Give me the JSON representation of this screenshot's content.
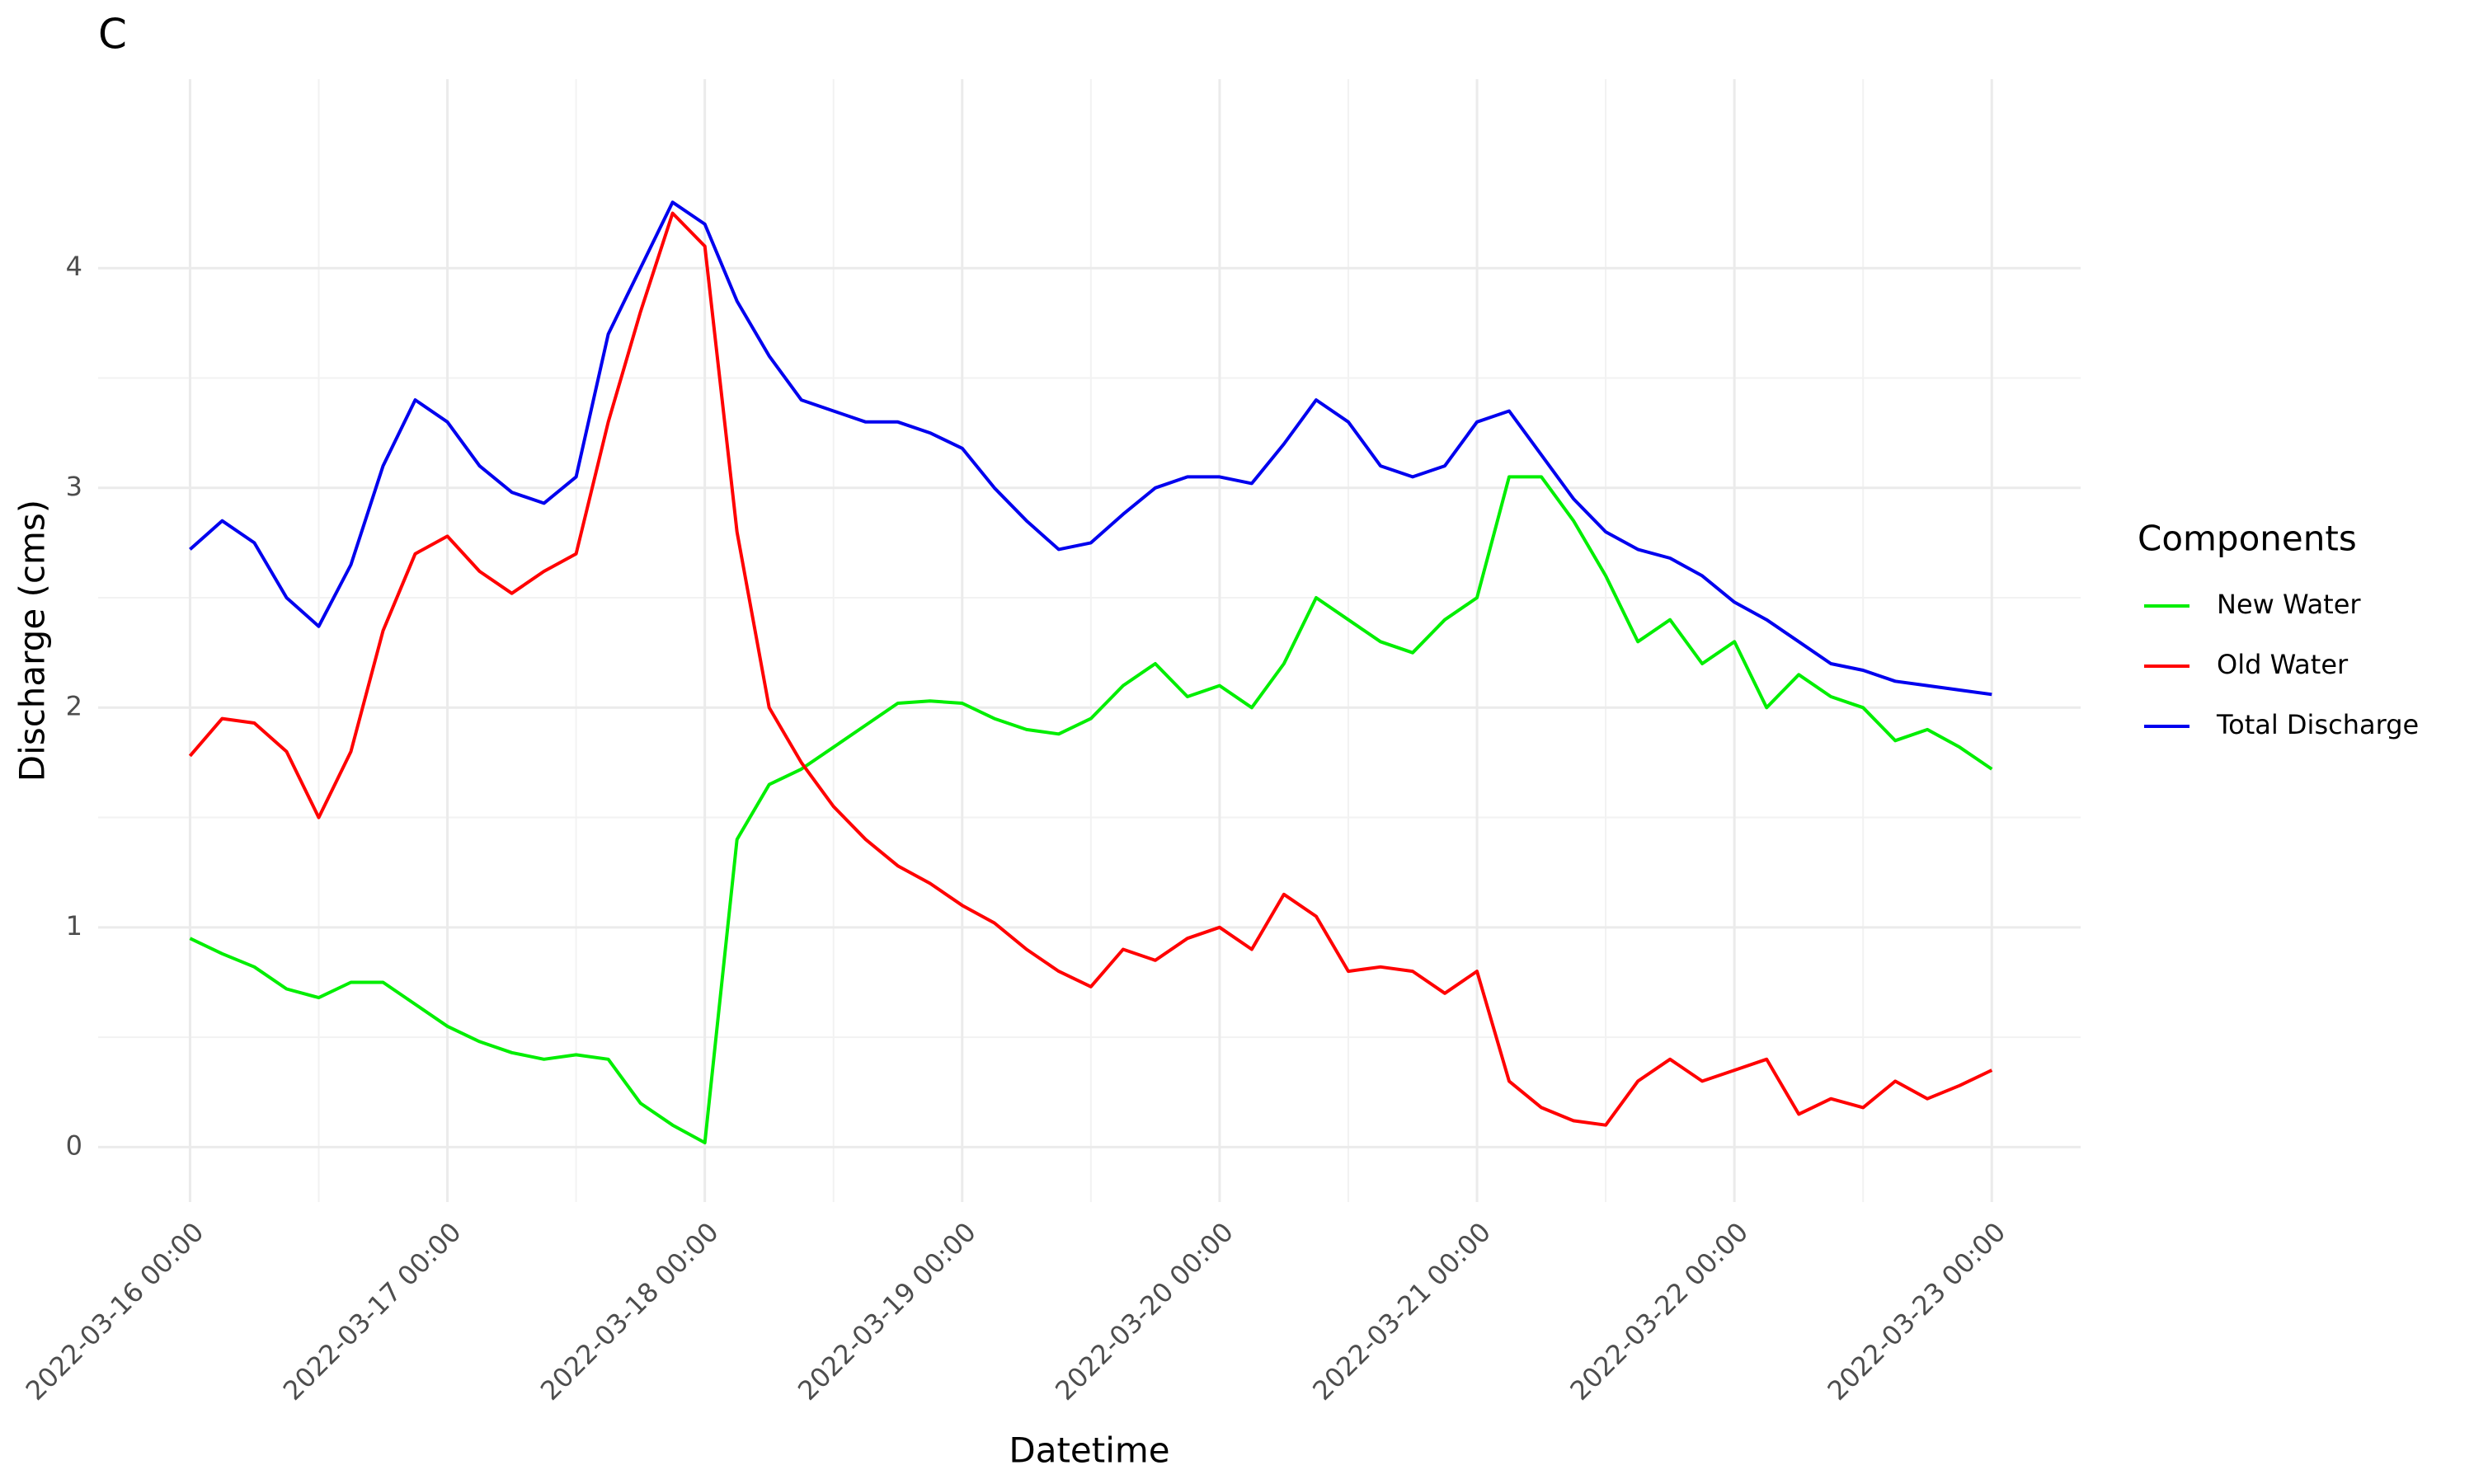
{
  "chart_data": {
    "type": "line",
    "title": "C",
    "x_label": "Datetime",
    "y_label": "Discharge (cms)",
    "legend_title": "Components",
    "legend": "right",
    "grid": true,
    "x": [
      "2022-03-16 00:00",
      "2022-03-16 03:00",
      "2022-03-16 06:00",
      "2022-03-16 09:00",
      "2022-03-16 12:00",
      "2022-03-16 15:00",
      "2022-03-16 18:00",
      "2022-03-16 21:00",
      "2022-03-17 00:00",
      "2022-03-17 03:00",
      "2022-03-17 06:00",
      "2022-03-17 09:00",
      "2022-03-17 12:00",
      "2022-03-17 15:00",
      "2022-03-17 18:00",
      "2022-03-17 21:00",
      "2022-03-18 00:00",
      "2022-03-18 03:00",
      "2022-03-18 06:00",
      "2022-03-18 09:00",
      "2022-03-18 12:00",
      "2022-03-18 15:00",
      "2022-03-18 18:00",
      "2022-03-18 21:00",
      "2022-03-19 00:00",
      "2022-03-19 03:00",
      "2022-03-19 06:00",
      "2022-03-19 09:00",
      "2022-03-19 12:00",
      "2022-03-19 15:00",
      "2022-03-19 18:00",
      "2022-03-19 21:00",
      "2022-03-20 00:00",
      "2022-03-20 03:00",
      "2022-03-20 06:00",
      "2022-03-20 09:00",
      "2022-03-20 12:00",
      "2022-03-20 15:00",
      "2022-03-20 18:00",
      "2022-03-20 21:00",
      "2022-03-21 00:00",
      "2022-03-21 03:00",
      "2022-03-21 06:00",
      "2022-03-21 09:00",
      "2022-03-21 12:00",
      "2022-03-21 15:00",
      "2022-03-21 18:00",
      "2022-03-21 21:00",
      "2022-03-22 00:00",
      "2022-03-22 03:00",
      "2022-03-22 06:00",
      "2022-03-22 09:00",
      "2022-03-22 12:00",
      "2022-03-22 15:00",
      "2022-03-22 18:00",
      "2022-03-22 21:00",
      "2022-03-23 00:00"
    ],
    "series": [
      {
        "name": "New Water",
        "color": "#00ee00",
        "values": [
          0.95,
          0.88,
          0.82,
          0.72,
          0.68,
          0.75,
          0.75,
          0.65,
          0.55,
          0.48,
          0.43,
          0.4,
          0.42,
          0.4,
          0.2,
          0.1,
          0.02,
          1.4,
          1.65,
          1.72,
          1.82,
          1.92,
          2.02,
          2.03,
          2.02,
          1.95,
          1.9,
          1.88,
          1.95,
          2.1,
          2.2,
          2.05,
          2.1,
          2.0,
          2.2,
          2.5,
          2.4,
          2.3,
          2.25,
          2.4,
          2.5,
          3.05,
          3.05,
          2.85,
          2.6,
          2.3,
          2.4,
          2.2,
          2.3,
          2.0,
          2.15,
          2.05,
          2.0,
          1.85,
          1.9,
          1.82,
          1.72
        ]
      },
      {
        "name": "Old Water",
        "color": "#ff0000",
        "values": [
          1.78,
          1.95,
          1.93,
          1.8,
          1.5,
          1.8,
          2.35,
          2.7,
          2.78,
          2.62,
          2.52,
          2.62,
          2.7,
          3.3,
          3.8,
          4.25,
          4.1,
          2.8,
          2.0,
          1.75,
          1.55,
          1.4,
          1.28,
          1.2,
          1.1,
          1.02,
          0.9,
          0.8,
          0.73,
          0.9,
          0.85,
          0.95,
          1.0,
          0.9,
          1.15,
          1.05,
          0.8,
          0.82,
          0.8,
          0.7,
          0.8,
          0.3,
          0.18,
          0.12,
          0.1,
          0.3,
          0.4,
          0.3,
          0.35,
          0.4,
          0.15,
          0.22,
          0.18,
          0.3,
          0.22,
          0.28,
          0.35
        ]
      },
      {
        "name": "Total Discharge",
        "color": "#0000ee",
        "values": [
          2.72,
          2.85,
          2.75,
          2.5,
          2.37,
          2.65,
          3.1,
          3.4,
          3.3,
          3.1,
          2.98,
          2.93,
          3.05,
          3.7,
          4.0,
          4.3,
          4.2,
          3.85,
          3.6,
          3.4,
          3.35,
          3.3,
          3.3,
          3.25,
          3.18,
          3.0,
          2.85,
          2.72,
          2.75,
          2.88,
          3.0,
          3.05,
          3.05,
          3.02,
          3.2,
          3.4,
          3.3,
          3.1,
          3.05,
          3.1,
          3.3,
          3.35,
          3.15,
          2.95,
          2.8,
          2.72,
          2.68,
          2.6,
          2.48,
          2.4,
          2.3,
          2.2,
          2.17,
          2.12,
          2.1,
          2.08,
          2.06
        ]
      }
    ],
    "xlim": [
      "2022-03-15 15:26",
      "2022-03-23 08:17"
    ],
    "xticks": [
      "2022-03-16 00:00",
      "2022-03-17 00:00",
      "2022-03-18 00:00",
      "2022-03-19 00:00",
      "2022-03-20 00:00",
      "2022-03-21 00:00",
      "2022-03-22 00:00",
      "2022-03-23 00:00"
    ],
    "ylim": [
      -0.25,
      4.86
    ],
    "yticks": [
      0,
      1,
      2,
      3,
      4
    ]
  }
}
